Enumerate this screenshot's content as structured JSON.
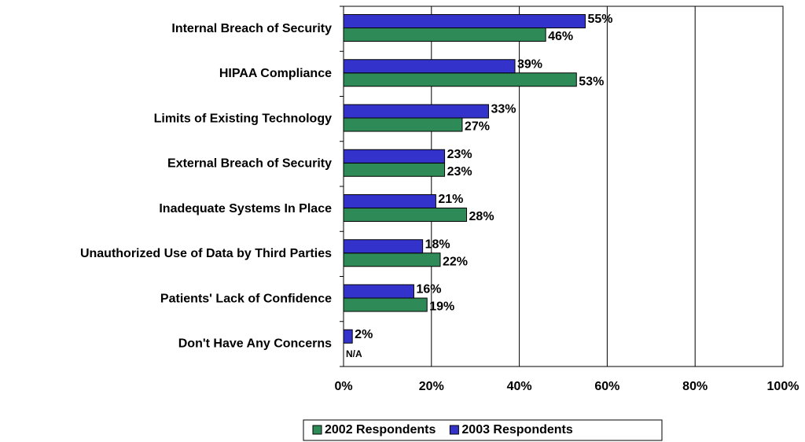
{
  "chart_data": {
    "type": "bar",
    "orientation": "horizontal",
    "categories": [
      "Internal Breach of Security",
      "HIPAA Compliance",
      "Limits of Existing Technology",
      "External Breach of Security",
      "Inadequate Systems In Place",
      "Unauthorized Use of Data by Third Parties",
      "Patients' Lack of Confidence",
      "Don't Have Any Concerns"
    ],
    "series": [
      {
        "name": "2002 Respondents",
        "color": "#2e8b57",
        "values": [
          46,
          53,
          27,
          23,
          28,
          22,
          19,
          null
        ],
        "value_labels": [
          "46%",
          "53%",
          "27%",
          "23%",
          "28%",
          "22%",
          "19%",
          "N/A"
        ]
      },
      {
        "name": "2003 Respondents",
        "color": "#3333cc",
        "values": [
          55,
          39,
          33,
          23,
          21,
          18,
          16,
          2
        ],
        "value_labels": [
          "55%",
          "39%",
          "33%",
          "23%",
          "21%",
          "18%",
          "16%",
          "2%"
        ]
      }
    ],
    "xlim": [
      0,
      100
    ],
    "xticks": [
      {
        "value": 0,
        "label": "0%"
      },
      {
        "value": 20,
        "label": "20%"
      },
      {
        "value": 40,
        "label": "40%"
      },
      {
        "value": 60,
        "label": "60%"
      },
      {
        "value": 80,
        "label": "80%"
      },
      {
        "value": 100,
        "label": "100%"
      }
    ],
    "grid": true,
    "legend": "bottom"
  }
}
